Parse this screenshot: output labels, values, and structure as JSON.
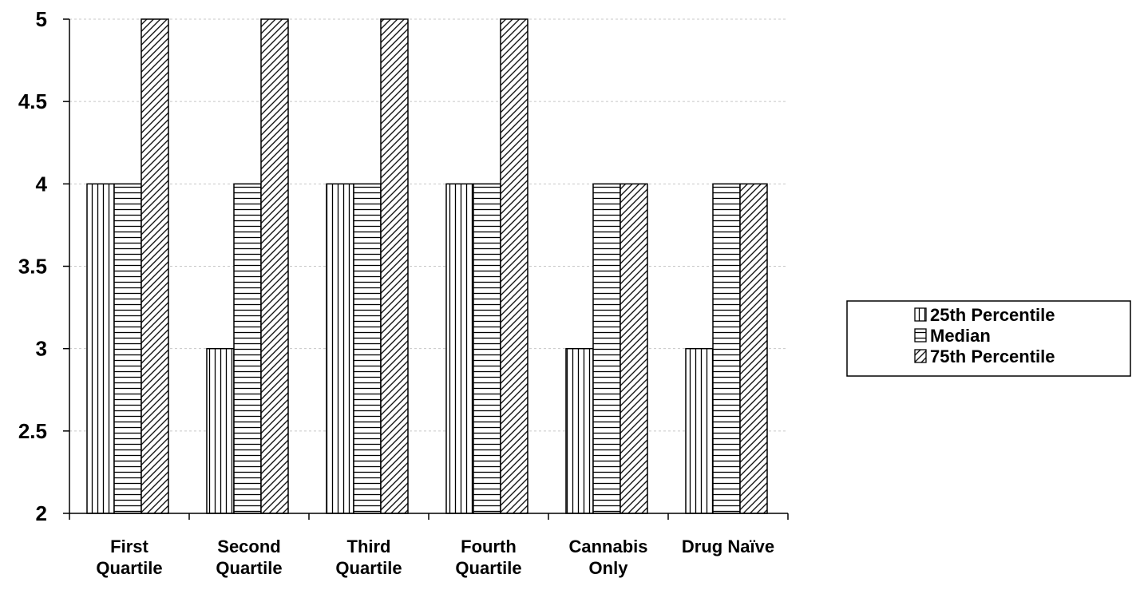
{
  "chart_data": {
    "type": "bar",
    "categories": [
      [
        "First",
        "Quartile"
      ],
      [
        "Second",
        "Quartile"
      ],
      [
        "Third",
        "Quartile"
      ],
      [
        "Fourth",
        "Quartile"
      ],
      [
        "Cannabis",
        "Only"
      ],
      [
        "Drug Naïve"
      ]
    ],
    "series": [
      {
        "name": "25th Percentile",
        "pattern": "vertical",
        "values": [
          4,
          3,
          4,
          4,
          3,
          3
        ]
      },
      {
        "name": "Median",
        "pattern": "horizontal",
        "values": [
          4,
          4,
          4,
          4,
          4,
          4
        ]
      },
      {
        "name": "75th Percentile",
        "pattern": "diagonal",
        "values": [
          5,
          5,
          5,
          5,
          4,
          4
        ]
      }
    ],
    "yticks": [
      "2",
      "2.5",
      "3",
      "3.5",
      "4",
      "4.5",
      "5"
    ],
    "ylim": [
      2,
      5
    ],
    "title": "",
    "xlabel": "",
    "ylabel": "",
    "grid": true,
    "legend_position": "right",
    "colors": {
      "bar_stroke": "#000000",
      "fill": "#ffffff",
      "grid": "#c8c8c8"
    }
  }
}
